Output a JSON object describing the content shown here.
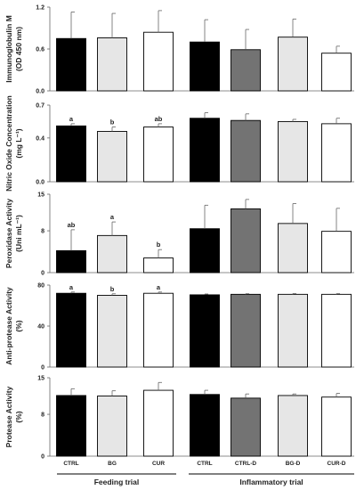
{
  "categories": [
    "CTRL",
    "BG",
    "CUR",
    "CTRL",
    "CTRL-D",
    "BG-D",
    "CUR-D"
  ],
  "groups": [
    "Feeding trial",
    "Inflammatory trial"
  ],
  "fills": [
    "#000000",
    "#e6e6e6",
    "#ffffff",
    "#000000",
    "#737373",
    "#e6e6e6",
    "#ffffff"
  ],
  "chart_data": [
    {
      "type": "bar",
      "ylabel": "Immunoglobulin M",
      "ylabel2": "(OD 450 nm)",
      "ylim": [
        0,
        1.2
      ],
      "yticks": [
        "0.0",
        "0.6",
        "1.2"
      ],
      "ytick_values": [
        0,
        0.6,
        1.2
      ],
      "categories": [
        "CTRL",
        "BG",
        "CUR",
        "CTRL",
        "CTRL-D",
        "BG-D",
        "CUR-D"
      ],
      "values": [
        0.75,
        0.76,
        0.84,
        0.7,
        0.59,
        0.77,
        0.54
      ],
      "errors": [
        0.38,
        0.35,
        0.31,
        0.32,
        0.29,
        0.26,
        0.1
      ],
      "letters": [
        "",
        "",
        "",
        "",
        "",
        "",
        ""
      ]
    },
    {
      "type": "bar",
      "ylabel": "Nitric Oxide Concentration",
      "ylabel2": "(mg L⁻¹)",
      "ylim": [
        0,
        0.7
      ],
      "yticks": [
        "0.0",
        "0.4",
        "0.7"
      ],
      "ytick_values": [
        0,
        0.4,
        0.7
      ],
      "categories": [
        "CTRL",
        "BG",
        "CUR",
        "CTRL",
        "CTRL-D",
        "BG-D",
        "CUR-D"
      ],
      "values": [
        0.51,
        0.46,
        0.5,
        0.58,
        0.56,
        0.55,
        0.53
      ],
      "errors": [
        0.02,
        0.04,
        0.03,
        0.05,
        0.06,
        0.02,
        0.05
      ],
      "letters": [
        "a",
        "b",
        "ab",
        "",
        "",
        "",
        ""
      ]
    },
    {
      "type": "bar",
      "ylabel": "Peroxidase Activity",
      "ylabel2": "(Uni mL⁻¹)",
      "ylim": [
        0,
        15
      ],
      "yticks": [
        "0",
        "8",
        "15"
      ],
      "ytick_values": [
        0,
        8,
        15
      ],
      "categories": [
        "CTRL",
        "BG",
        "CUR",
        "CTRL",
        "CTRL-D",
        "BG-D",
        "CUR-D"
      ],
      "values": [
        4.2,
        7.1,
        2.8,
        8.4,
        12.2,
        9.4,
        7.9
      ],
      "errors": [
        4.0,
        2.6,
        1.6,
        4.5,
        1.8,
        3.8,
        4.4
      ],
      "letters": [
        "ab",
        "a",
        "b",
        "",
        "",
        "",
        ""
      ]
    },
    {
      "type": "bar",
      "ylabel": "Anti-protease Activity",
      "ylabel2": "(%)",
      "ylim": [
        0,
        80
      ],
      "yticks": [
        "0",
        "40",
        "80"
      ],
      "ytick_values": [
        0,
        40,
        80
      ],
      "categories": [
        "CTRL",
        "BG",
        "CUR",
        "CTRL",
        "CTRL-D",
        "BG-D",
        "CUR-D"
      ],
      "values": [
        72,
        70,
        72,
        70.5,
        71,
        71,
        71
      ],
      "errors": [
        1.2,
        1.5,
        1.2,
        0.8,
        0.6,
        0.8,
        0.7
      ],
      "letters": [
        "a",
        "b",
        "a",
        "",
        "",
        "",
        ""
      ]
    },
    {
      "type": "bar",
      "ylabel": "Protease Activity",
      "ylabel2": "(%)",
      "ylim": [
        0,
        15
      ],
      "yticks": [
        "0",
        "8",
        "15"
      ],
      "ytick_values": [
        0,
        8,
        15
      ],
      "categories": [
        "CTRL",
        "BG",
        "CUR",
        "CTRL",
        "CTRL-D",
        "BG-D",
        "CUR-D"
      ],
      "values": [
        11.6,
        11.5,
        12.6,
        11.8,
        11.1,
        11.6,
        11.3
      ],
      "errors": [
        1.3,
        1.0,
        1.5,
        0.8,
        0.8,
        0.3,
        0.7
      ],
      "letters": [
        "",
        "",
        "",
        "",
        "",
        "",
        ""
      ]
    }
  ]
}
